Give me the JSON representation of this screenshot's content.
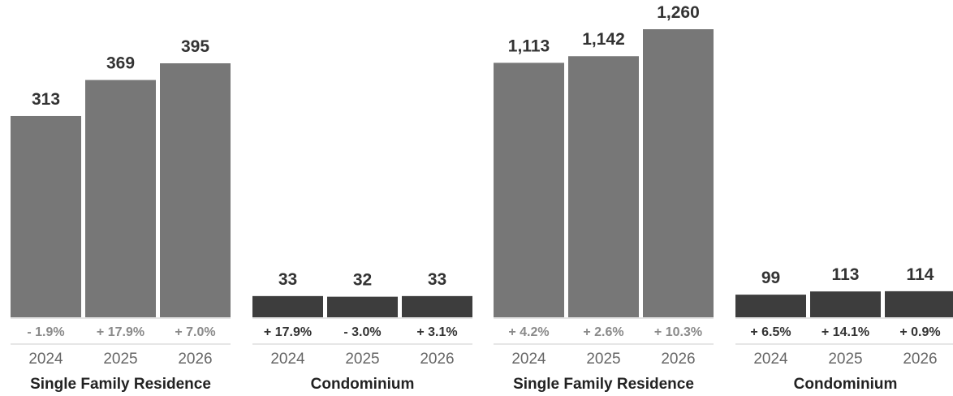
{
  "colors": {
    "single_family": "#777777",
    "condominium": "#3d3d3d",
    "change_single_family": "#8a8a8a",
    "change_condominium": "#333333",
    "baseline": "#cccccc"
  },
  "chart_data": [
    {
      "type": "bar",
      "title": "",
      "categories": [
        "2024",
        "2025",
        "2026"
      ],
      "groups": [
        {
          "name": "Single Family Residence",
          "values": [
            313,
            369,
            395
          ],
          "changes": [
            "- 1.9%",
            "+ 17.9%",
            "+ 7.0%"
          ]
        },
        {
          "name": "Condominium",
          "values": [
            33,
            32,
            33
          ],
          "changes": [
            "+ 17.9%",
            "- 3.0%",
            "+ 3.1%"
          ]
        }
      ],
      "value_labels": [
        [
          "313",
          "369",
          "395"
        ],
        [
          "33",
          "32",
          "33"
        ]
      ],
      "ylim": [
        0,
        395
      ],
      "grid": false,
      "legend": "none"
    },
    {
      "type": "bar",
      "title": "",
      "categories": [
        "2024",
        "2025",
        "2026"
      ],
      "groups": [
        {
          "name": "Single Family Residence",
          "values": [
            1113,
            1142,
            1260
          ],
          "changes": [
            "+ 4.2%",
            "+ 2.6%",
            "+ 10.3%"
          ]
        },
        {
          "name": "Condominium",
          "values": [
            99,
            113,
            114
          ],
          "changes": [
            "+ 6.5%",
            "+ 14.1%",
            "+ 0.9%"
          ]
        }
      ],
      "value_labels": [
        [
          "1,113",
          "1,142",
          "1,260"
        ],
        [
          "99",
          "113",
          "114"
        ]
      ],
      "ylim": [
        0,
        1260
      ],
      "grid": false,
      "legend": "none"
    }
  ]
}
